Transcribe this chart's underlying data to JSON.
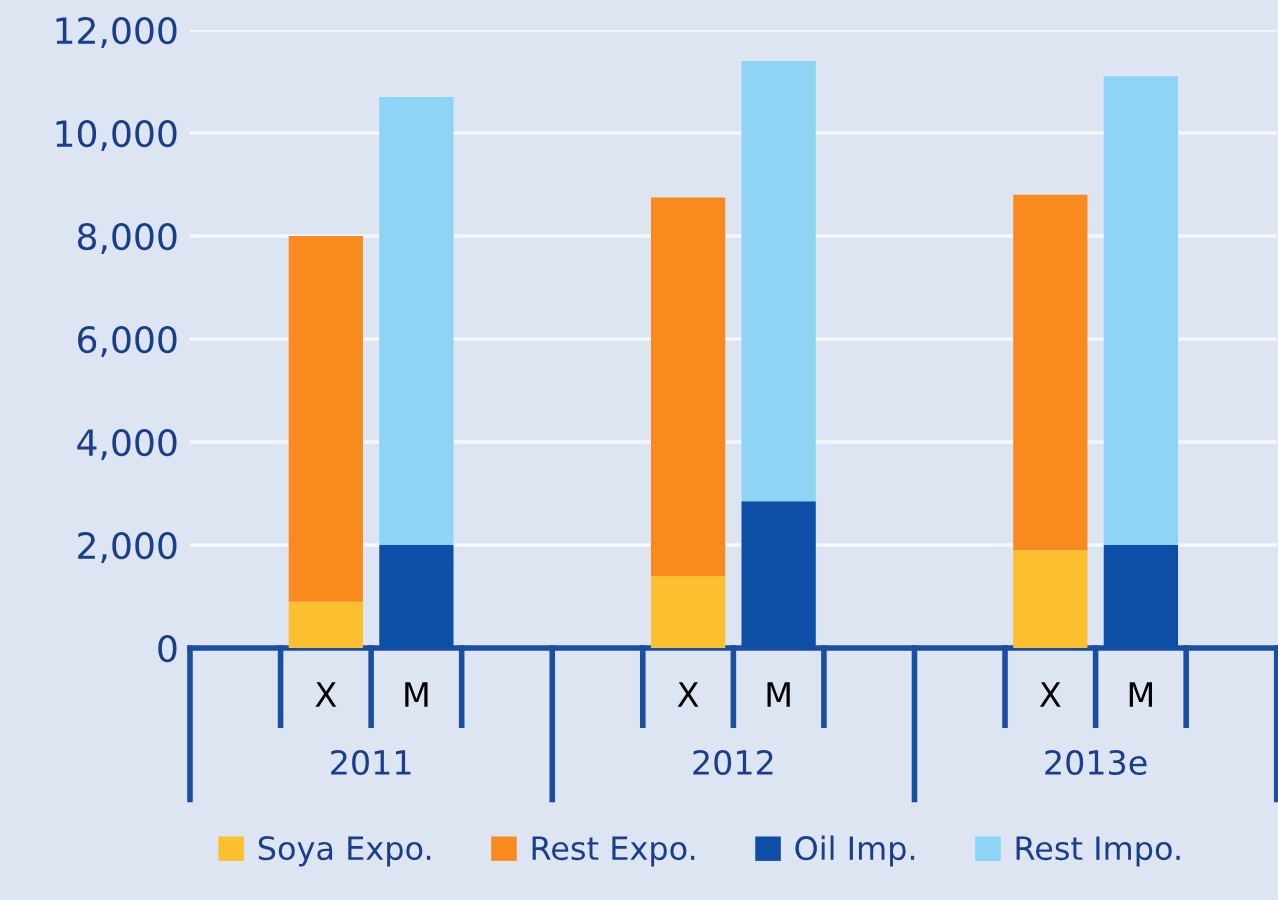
{
  "chart_data": {
    "type": "bar",
    "stacked": true,
    "categories": [
      null,
      "X",
      "M",
      null,
      null,
      "X",
      "M",
      null,
      null,
      "X",
      "M",
      null
    ],
    "annotations": [
      "2011",
      "2012",
      "2013e"
    ],
    "series": [
      {
        "name": "Soya Expo.",
        "color": "#fcbf2f",
        "values": [
          null,
          900,
          null,
          null,
          null,
          1400,
          null,
          null,
          null,
          1900,
          null,
          null
        ]
      },
      {
        "name": "Rest Expo.",
        "color": "#f98a1e",
        "values": [
          null,
          7100,
          null,
          null,
          null,
          7350,
          null,
          null,
          null,
          6900,
          null,
          null
        ]
      },
      {
        "name": "Oil Imp.",
        "color": "#0d4ea6",
        "values": [
          null,
          null,
          2000,
          null,
          null,
          null,
          2850,
          null,
          null,
          null,
          2000,
          null
        ]
      },
      {
        "name": "Rest Impo.",
        "color": "#8ed4f5",
        "values": [
          null,
          null,
          8700,
          null,
          null,
          null,
          8550,
          null,
          null,
          null,
          9100,
          null
        ]
      }
    ],
    "ylim": [
      0,
      12000
    ],
    "yticks": [
      0,
      {
        "value": 2000,
        "label": "2,000"
      },
      {
        "value": 4000,
        "label": "4,000"
      },
      {
        "value": 6000,
        "label": "6,000"
      },
      {
        "value": 8000,
        "label": "8,000"
      },
      {
        "value": 10000,
        "label": "10,000"
      },
      {
        "value": 12000,
        "label": "12,000"
      }
    ],
    "grid": "y",
    "legend": "bottom"
  }
}
